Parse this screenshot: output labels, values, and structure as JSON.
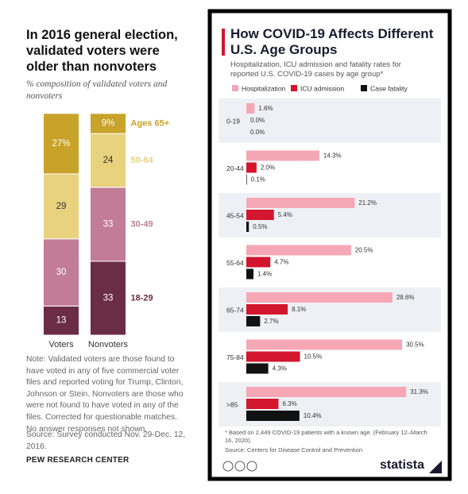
{
  "chart_data": [
    {
      "type": "bar",
      "stacked": true,
      "title": "In 2016 general election, validated voters were older than nonvoters",
      "subtitle": "% composition of validated voters and nonvoters",
      "note": "Note: Validated voters are those found to have voted in any of five commercial voter files and reported voting for Trump, Clinton, Johnson or Stein. Nonvoters are those who were not found to have voted in any of the files. Corrected for questionable matches. No answer responses not shown.",
      "source": "Source: Survey conducted Nov. 29-Dec. 12, 2016.",
      "logo": "PEW RESEARCH CENTER",
      "categories": [
        "Voters",
        "Nonvoters"
      ],
      "ylim": [
        0,
        100
      ],
      "series": [
        {
          "name": "18-29",
          "color": "#6b2c46",
          "values": [
            13,
            33
          ]
        },
        {
          "name": "30-49",
          "color": "#c27c96",
          "values": [
            30,
            33
          ]
        },
        {
          "name": "50-64",
          "color": "#e9d27e",
          "values": [
            29,
            24
          ]
        },
        {
          "name": "Ages 65+",
          "color": "#c9a22a",
          "values": [
            27,
            9
          ],
          "value_labels": [
            "27%",
            "9%"
          ]
        }
      ]
    },
    {
      "type": "bar",
      "horizontal": true,
      "title": "How COVID-19 Affects Different U.S. Age Groups",
      "subtitle": "Hospitalization, ICU admission and fatality rates for reported U.S. COVID-19 cases by age group*",
      "footnote": "* Based on 2,449 COVID-19 patients with a known age. (February 12–March 16, 2020).",
      "source": "Source: Centers for Disease Control and Prevention",
      "logo": "statista",
      "categories": [
        "0-19",
        "20-44",
        "45-54",
        "55-64",
        "65-74",
        "75-84",
        ">85"
      ],
      "xlim": [
        0,
        35
      ],
      "series": [
        {
          "name": "Hospitalization",
          "color": "#f5a7b5",
          "values": [
            1.6,
            14.3,
            21.2,
            20.5,
            28.6,
            30.5,
            31.3
          ],
          "value_labels": [
            "1.6%",
            "14.3%",
            "21.2%",
            "20.5%",
            "28.6%",
            "30.5%",
            "31.3%"
          ]
        },
        {
          "name": "ICU admission",
          "color": "#d3152d",
          "values": [
            0.0,
            2.0,
            5.4,
            4.7,
            8.1,
            10.5,
            6.3
          ],
          "value_labels": [
            "0.0%",
            "2.0%",
            "5.4%",
            "4.7%",
            "8.1%",
            "10.5%",
            "6.3%"
          ]
        },
        {
          "name": "Case fatality",
          "color": "#111111",
          "values": [
            0.0,
            0.1,
            0.5,
            1.4,
            2.7,
            4.3,
            10.4
          ],
          "value_labels": [
            "0.0%",
            "0.1%",
            "0.5%",
            "1.4%",
            "2.7%",
            "4.3%",
            "10.4%"
          ]
        }
      ]
    }
  ]
}
